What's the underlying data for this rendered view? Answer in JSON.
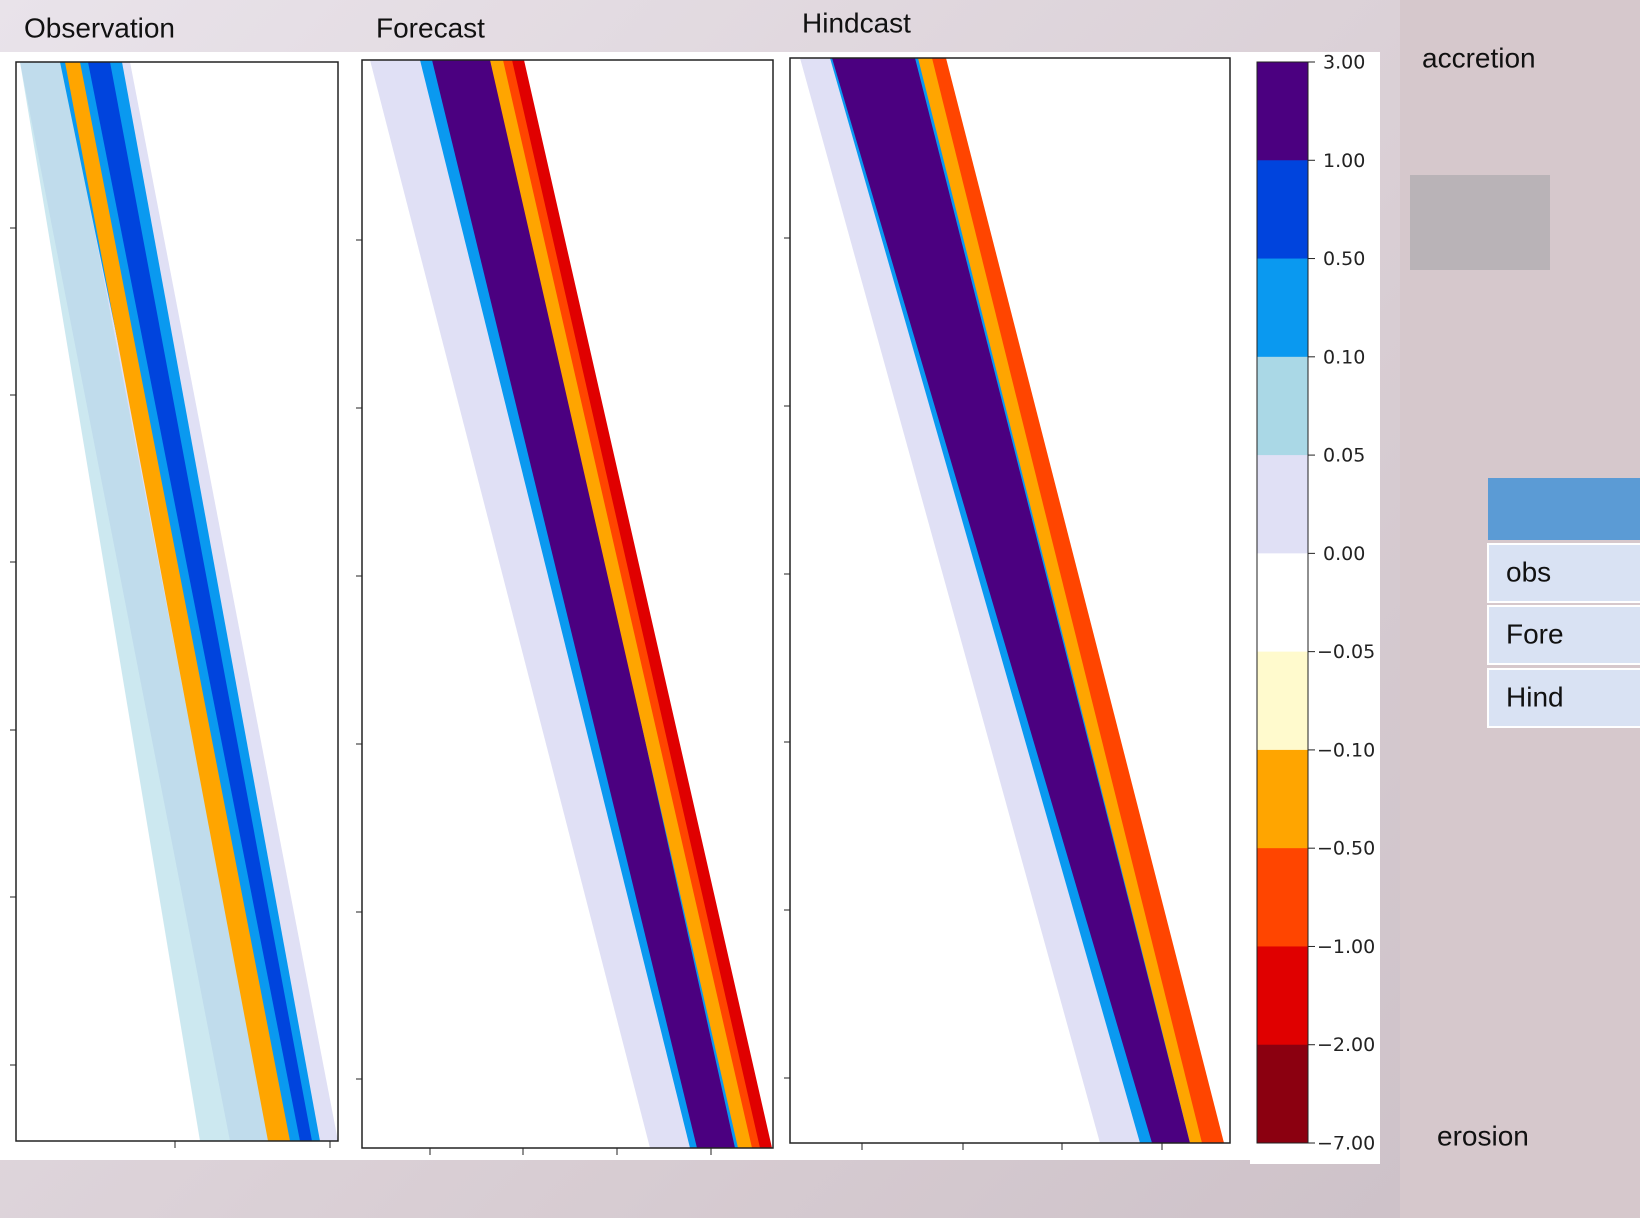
{
  "panels": [
    {
      "title": "Observation"
    },
    {
      "title": "Forecast"
    },
    {
      "title": "Hindcast"
    }
  ],
  "colorbar": {
    "ticks": [
      {
        "value": 3,
        "label": "3.00"
      },
      {
        "value": 1,
        "label": "1.00"
      },
      {
        "value": 0.5,
        "label": "0.50"
      },
      {
        "value": 0.1,
        "label": "0.10"
      },
      {
        "value": 0.05,
        "label": "0.05"
      },
      {
        "value": 0,
        "label": "0.00"
      },
      {
        "value": -0.05,
        "label": "−0.05"
      },
      {
        "value": -0.1,
        "label": "−0.10"
      },
      {
        "value": -0.5,
        "label": "−0.50"
      },
      {
        "value": -1,
        "label": "−1.00"
      },
      {
        "value": -2,
        "label": "−2.00"
      },
      {
        "value": -7,
        "label": "−7.00"
      }
    ],
    "colors": [
      "#4b0080",
      "#0044dd",
      "#0a99f0",
      "#aad8e6",
      "#e0e0f5",
      "#ffffff",
      "#fffacd",
      "#ffa500",
      "#ff4500",
      "#e00000",
      "#8b0010"
    ]
  },
  "labels": {
    "top": "accretion",
    "bottom": "erosion"
  },
  "table": {
    "rows": [
      [
        "obs"
      ],
      [
        "Fore"
      ],
      [
        "Hind"
      ]
    ]
  }
}
